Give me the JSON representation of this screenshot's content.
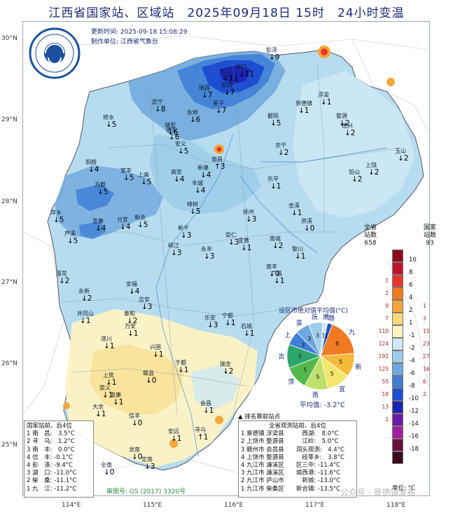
{
  "title": "江西省国家站、区域站　2025年09月18日 15时　24小时变温",
  "update_time": "更新时间: 2025-09-18 15:08:29",
  "producer": "制作单位: 江西省气象台",
  "logo_text": "JIANGXI METEOROLOGY",
  "lat_labels": [
    "30°N",
    "29°N",
    "28°N",
    "27°N",
    "26°N",
    "25°N"
  ],
  "lon_labels": [
    "114°E",
    "115°E",
    "116°E",
    "117°E",
    "118°E"
  ],
  "legend": {
    "left_head_1": "全省",
    "left_head_2": "站数",
    "left_total": "658",
    "right_head_1": "国家",
    "right_head_2": "站数",
    "right_total": "93",
    "unit": "单位: °C",
    "classes": [
      {
        "label": "10",
        "color": "#8b0a1a",
        "national": "",
        "all": ""
      },
      {
        "label": "8",
        "color": "#c2112b",
        "national": "",
        "all": ""
      },
      {
        "label": "6",
        "color": "#e8362b",
        "national": "",
        "all": "1"
      },
      {
        "label": "4",
        "color": "#f07b22",
        "national": "",
        "all": "2"
      },
      {
        "label": "2",
        "color": "#f6a53a",
        "national": "1",
        "all": "9"
      },
      {
        "label": "1",
        "color": "#f8d77a",
        "national": "3",
        "all": "7"
      },
      {
        "label": "-1",
        "color": "#fdf2c4",
        "national": "15",
        "all": "110"
      },
      {
        "label": "-2",
        "color": "#cde8f3",
        "national": "23",
        "all": "124"
      },
      {
        "label": "-4",
        "color": "#9fcde9",
        "national": "27",
        "all": "192"
      },
      {
        "label": "-6",
        "color": "#6fa8dc",
        "national": "16",
        "all": "125"
      },
      {
        "label": "-8",
        "color": "#3f7fd6",
        "national": "6",
        "all": "55"
      },
      {
        "label": "-10",
        "color": "#1f4fd1",
        "national": "2",
        "all": "18"
      },
      {
        "label": "-12",
        "color": "#1a25b3",
        "national": "",
        "all": "13"
      },
      {
        "label": "-14",
        "color": "#6a1aa8",
        "national": "",
        "all": "2"
      },
      {
        "label": "-16",
        "color": "#a11ea0",
        "national": "",
        "all": ""
      },
      {
        "label": "-18",
        "color": "#6b0f3c",
        "national": "",
        "all": ""
      },
      {
        "label": "",
        "color": "#3d0a1a",
        "national": "",
        "all": ""
      }
    ]
  },
  "pie": {
    "title": "设区市绝对值平均值(°C)",
    "average": "平均值: -3.2°C",
    "slices": [
      {
        "city": "九",
        "value": "8",
        "color": "#f07b22"
      },
      {
        "city": "新",
        "value": "5",
        "color": "#f6b93a"
      },
      {
        "city": "宜",
        "value": "5",
        "color": "#f3e66b"
      },
      {
        "city": "南",
        "value": "5",
        "color": "#bfe06a"
      },
      {
        "city": "萍",
        "value": "5",
        "color": "#53b84a"
      },
      {
        "city": "吉",
        "value": "5",
        "color": "#2ea56a"
      },
      {
        "city": "上",
        "value": "3",
        "color": "#3f7fd6"
      },
      {
        "city": "景",
        "value": "3",
        "color": "#6fa8dc"
      },
      {
        "city": "抚",
        "value": "3",
        "color": "#9fcde9"
      },
      {
        "city": "鹰",
        "value": "1",
        "color": "#cde8f3"
      },
      {
        "city": "赣",
        "value": "1",
        "color": "#1f4fd1"
      }
    ]
  },
  "national_box": {
    "title": "国家站前、后4位",
    "rows": [
      "1 南　昌:　3.5°C",
      "2 寻　乌:　1.2°C",
      "3 南　丰:　0.0°C",
      "4 信　丰: -0.1°C",
      "4 彭　泽: -9.4°C",
      "3 湖　口: -11.0°C",
      "2 柴　桑: -11.1°C",
      "1 九　江: -11.2°C"
    ]
  },
  "all_box": {
    "flag": "▲ 排名靠前站点",
    "title": "全省观测站前、后4位",
    "rows": [
      "1 景德镇 浮梁县　　　西湖:　8.0°C",
      "2 上饶市 婺源县　　　江岭:　5.0°C",
      "3 赣州市 会昌县　　洞头观测:　4.4°C",
      "4 上饶市 婺源县　　　段莘乡:　3.8°C",
      "4 九江市 濂溪区　　区三中: -11.4°C",
      "3 九江市 濂溪区　　城西港: -11.6°C",
      "2 九江市 庐山市　　　新城: -13.0°C",
      "1 九江市 柴桑区　　新合镇: -13.5°C"
    ]
  },
  "footer": "审图号: GS (2017) 3320号",
  "watermark": "公众号 · 景德镇发布",
  "stations": [
    {
      "name": "修水",
      "value": "↓5"
    },
    {
      "name": "武宁",
      "value": "↓8"
    },
    {
      "name": "瑞昌",
      "value": "↓7"
    },
    {
      "name": "九江",
      "value": "↓11"
    },
    {
      "name": "彭泽",
      "value": "↓9"
    },
    {
      "name": "湖口",
      "value": "↓11"
    },
    {
      "name": "都昌",
      "value": "↓7"
    },
    {
      "name": "永修",
      "value": "↓6"
    },
    {
      "name": "德安",
      "value": "↓6"
    },
    {
      "name": "星子",
      "value": "↓7"
    },
    {
      "name": "靖安",
      "value": "↓6"
    },
    {
      "name": "安义",
      "value": "↓5"
    },
    {
      "name": "南昌",
      "value": "↑3"
    },
    {
      "name": "新建",
      "value": "↓4"
    },
    {
      "name": "鄱阳",
      "value": "↓5"
    },
    {
      "name": "余干",
      "value": "↓2"
    },
    {
      "name": "景德镇",
      "value": "↓1"
    },
    {
      "name": "浮梁",
      "value": "↓1"
    },
    {
      "name": "乐平",
      "value": "↓1"
    },
    {
      "name": "婺源",
      "value": "↓2"
    },
    {
      "name": "德兴",
      "value": "↓2"
    },
    {
      "name": "玉山",
      "value": "↓2"
    },
    {
      "name": "上饶",
      "value": "↓2"
    },
    {
      "name": "铅山",
      "value": "↓2"
    },
    {
      "name": "宜丰",
      "value": "↓5"
    },
    {
      "name": "铜鼓",
      "value": "↓4"
    },
    {
      "name": "上高",
      "value": "↓5"
    },
    {
      "name": "高安",
      "value": "↓4"
    },
    {
      "name": "丰城",
      "value": "↓4"
    },
    {
      "name": "万载",
      "value": "↓5"
    },
    {
      "name": "宜春",
      "value": "↓4"
    },
    {
      "name": "萍乡",
      "value": "↓5"
    },
    {
      "name": "芦溪",
      "value": "↓5"
    },
    {
      "name": "分宜",
      "value": "↓4"
    },
    {
      "name": "新余",
      "value": "↓5"
    },
    {
      "name": "樟树",
      "value": "↓5"
    },
    {
      "name": "新干",
      "value": "↓3"
    },
    {
      "name": "峡江",
      "value": "↓3"
    },
    {
      "name": "抚州",
      "value": "↓3"
    },
    {
      "name": "崇仁",
      "value": "↓3"
    },
    {
      "name": "宜黄",
      "value": "↓1"
    },
    {
      "name": "南城",
      "value": "↓2"
    },
    {
      "name": "金溪",
      "value": "↓1"
    },
    {
      "name": "资溪",
      "value": "↓0"
    },
    {
      "name": "黎川",
      "value": "↓1"
    },
    {
      "name": "南丰",
      "value": "↓0"
    },
    {
      "name": "莲花",
      "value": "↓2"
    },
    {
      "name": "永新",
      "value": "↓2"
    },
    {
      "name": "安福",
      "value": "↓4"
    },
    {
      "name": "吉安",
      "value": "↓3"
    },
    {
      "name": "泰和",
      "value": "↓2"
    },
    {
      "name": "永丰",
      "value": "↓3"
    },
    {
      "name": "乐安",
      "value": "↓3"
    },
    {
      "name": "井冈山",
      "value": "↓1"
    },
    {
      "name": "遂川",
      "value": "↓1"
    },
    {
      "name": "万安",
      "value": "↓1"
    },
    {
      "name": "兴国",
      "value": "↓1"
    },
    {
      "name": "宁都",
      "value": "↓1"
    },
    {
      "name": "石城",
      "value": "↓1"
    },
    {
      "name": "广昌",
      "value": "↓1"
    },
    {
      "name": "于都",
      "value": "↓1"
    },
    {
      "name": "瑞金",
      "value": "↓2"
    },
    {
      "name": "赣县",
      "value": "↓0"
    },
    {
      "name": "上犹",
      "value": "↓1"
    },
    {
      "name": "崇义",
      "value": "↓1"
    },
    {
      "name": "南康",
      "value": "↓1"
    },
    {
      "name": "大余",
      "value": "↓1"
    },
    {
      "name": "信丰",
      "value": "↓0"
    },
    {
      "name": "会昌",
      "value": "↓1"
    },
    {
      "name": "安远",
      "value": "↓1"
    },
    {
      "name": "龙南",
      "value": "↓0"
    },
    {
      "name": "全南",
      "value": "↓0"
    },
    {
      "name": "定南",
      "value": "↓3"
    },
    {
      "name": "寻乌",
      "value": "↑1"
    }
  ]
}
